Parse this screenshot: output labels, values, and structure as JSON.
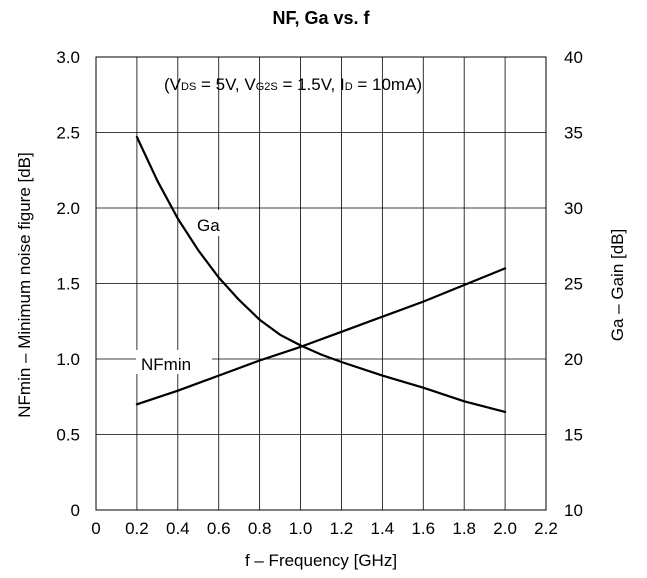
{
  "chart_data": {
    "type": "line",
    "title": "NF, Ga vs. f",
    "conditions": {
      "open": "(",
      "vds_main": "V",
      "vds_sub": "DS",
      "vds_val": " = 5V, ",
      "vg2s_main": "V",
      "vg2s_sub": "G2S",
      "vg2s_val": " = 1.5V, ",
      "id_main": "I",
      "id_sub": "D",
      "id_val": " = 10mA)"
    },
    "xlabel": "f – Frequency [GHz]",
    "ylabel_left": "NFmin – Minimum noise figure [dB]",
    "ylabel_right": "Ga – Gain [dB]",
    "xlim": [
      0,
      2.2
    ],
    "ylim_left": [
      0,
      3.0
    ],
    "ylim_right": [
      10,
      40
    ],
    "xticks": [
      "0",
      "0.2",
      "0.4",
      "0.6",
      "0.8",
      "1.0",
      "1.2",
      "1.4",
      "1.6",
      "1.8",
      "2.0",
      "2.2"
    ],
    "yticks_left": [
      "0",
      "0.5",
      "1.0",
      "1.5",
      "2.0",
      "2.5",
      "3.0"
    ],
    "yticks_right": [
      "10",
      "15",
      "20",
      "25",
      "30",
      "35",
      "40"
    ],
    "grid": true,
    "series": [
      {
        "name": "NFmin",
        "axis": "left",
        "x": [
          0.2,
          0.4,
          0.6,
          0.8,
          1.0,
          1.2,
          1.4,
          1.6,
          1.8,
          2.0
        ],
        "y": [
          0.7,
          0.79,
          0.89,
          0.99,
          1.08,
          1.18,
          1.28,
          1.38,
          1.49,
          1.6
        ]
      },
      {
        "name": "Ga",
        "axis": "right",
        "x": [
          0.2,
          0.3,
          0.4,
          0.5,
          0.6,
          0.7,
          0.8,
          0.9,
          1.0,
          1.1,
          1.2,
          1.4,
          1.6,
          1.8,
          2.0
        ],
        "y": [
          34.7,
          31.8,
          29.3,
          27.2,
          25.4,
          23.9,
          22.6,
          21.6,
          20.9,
          20.3,
          19.8,
          18.9,
          18.1,
          17.2,
          16.5
        ]
      }
    ]
  }
}
